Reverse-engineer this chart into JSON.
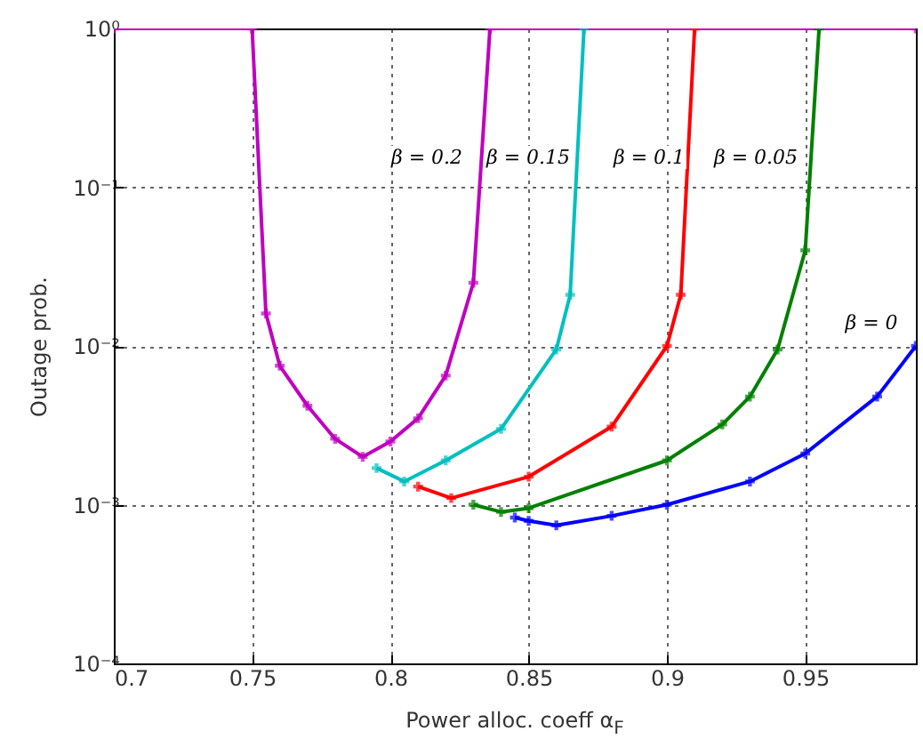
{
  "chart_data": {
    "type": "line",
    "xlabel": "Power alloc. coeff α$_{F}$",
    "ylabel": "Outage prob.",
    "log": "y",
    "grid": true,
    "marker": "cross",
    "line_style": "solid",
    "xlim": [
      0.7,
      0.99
    ],
    "xticks": [
      0.7,
      0.75,
      0.8,
      0.85,
      0.9,
      0.95
    ],
    "ylim": [
      0.0001,
      1
    ],
    "yticks": [
      {
        "value": 0.0001,
        "label": "10⁻⁴"
      },
      {
        "value": 0.001,
        "label": "10⁻³"
      },
      {
        "value": 0.01,
        "label": "10⁻²"
      },
      {
        "value": 0.1,
        "label": "10⁻¹"
      },
      {
        "value": 1,
        "label": "10⁰"
      }
    ],
    "annotations": [
      "β = 0.2",
      "β = 0.15",
      "β = 0.1",
      "β = 0.05",
      "β = 0"
    ],
    "series": [
      {
        "color": "#0000ff",
        "x": [
          0.845,
          0.85,
          0.86,
          0.88,
          0.9,
          0.93,
          0.95,
          0.976,
          0.99
        ],
        "values": [
          0.00083,
          0.00079,
          0.00074,
          0.00085,
          0.001,
          0.0014,
          0.0021,
          0.0048,
          0.01
        ]
      },
      {
        "color": "#008000",
        "x": [
          0.83,
          0.84,
          0.85,
          0.9,
          0.92,
          0.93,
          0.94,
          0.95,
          0.955
        ],
        "values": [
          0.001,
          0.0009,
          0.00095,
          0.0019,
          0.0032,
          0.0048,
          0.0095,
          0.04,
          1
        ]
      },
      {
        "color": "#ff0000",
        "x": [
          0.81,
          0.822,
          0.85,
          0.88,
          0.9,
          0.905,
          0.91
        ],
        "values": [
          0.0013,
          0.0011,
          0.0015,
          0.0031,
          0.01,
          0.021,
          1
        ]
      },
      {
        "color": "#00bfbf",
        "x": [
          0.795,
          0.805,
          0.82,
          0.84,
          0.86,
          0.865,
          0.87
        ],
        "values": [
          0.0017,
          0.0014,
          0.0019,
          0.003,
          0.0095,
          0.021,
          1
        ]
      },
      {
        "color": "#bf00bf",
        "x": [
          0.7,
          0.75,
          0.755,
          0.76,
          0.77,
          0.78,
          0.79,
          0.8,
          0.81,
          0.82,
          0.83,
          0.836,
          0.99
        ],
        "values": [
          1,
          1,
          0.016,
          0.0075,
          0.0042,
          0.0026,
          0.002,
          0.0025,
          0.0035,
          0.0065,
          0.025,
          1,
          1
        ]
      }
    ]
  }
}
